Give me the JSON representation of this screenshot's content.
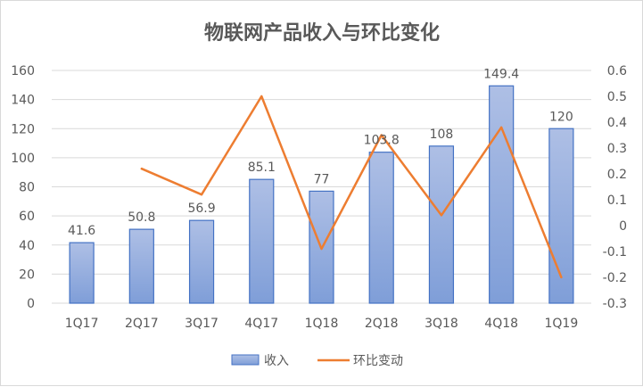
{
  "chart_data": {
    "type": "bar",
    "title": "物联网产品收入与环比变化",
    "categories": [
      "1Q17",
      "2Q17",
      "3Q17",
      "4Q17",
      "1Q18",
      "2Q18",
      "3Q18",
      "4Q18",
      "1Q19"
    ],
    "series": [
      {
        "name": "收入",
        "type": "bar",
        "axis": "left",
        "values": [
          41.6,
          50.8,
          56.9,
          85.1,
          77,
          103.8,
          108,
          149.4,
          120
        ],
        "labels": [
          "41.6",
          "50.8",
          "56.9",
          "85.1",
          "77",
          "103.8",
          "108",
          "149.4",
          "120"
        ],
        "color": "#8faadc",
        "stroke": "#4472c4"
      },
      {
        "name": "环比变动",
        "type": "line",
        "axis": "right",
        "values": [
          null,
          0.22,
          0.12,
          0.5,
          -0.09,
          0.35,
          0.04,
          0.38,
          -0.2
        ],
        "color": "#ed7d31"
      }
    ],
    "ylim_left": [
      0,
      160
    ],
    "yticks_left": [
      "0",
      "20",
      "40",
      "60",
      "80",
      "100",
      "120",
      "140",
      "160"
    ],
    "ylim_right": [
      -0.3,
      0.6
    ],
    "yticks_right": [
      "-0.3",
      "-0.2",
      "-0.1",
      "0",
      "0.1",
      "0.2",
      "0.3",
      "0.4",
      "0.5",
      "0.6"
    ],
    "grid": true,
    "legend_position": "bottom"
  }
}
